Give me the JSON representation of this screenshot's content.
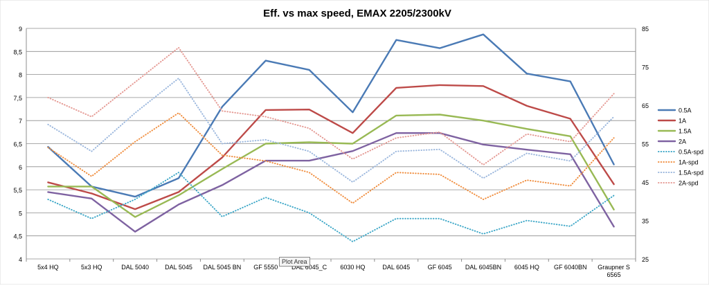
{
  "chart_data": {
    "type": "line",
    "title": "Eff. vs max speed, EMAX 2205/2300kV",
    "categories": [
      "5x4 HQ",
      "5x3 HQ",
      "DAL 5040",
      "DAL 5045",
      "DAL 5045 BN",
      "GF 5550",
      "DAL 6045_C",
      "6030 HQ",
      "DAL 6045",
      "GF 6045",
      "DAL 6045BN",
      "6045 HQ",
      "GF 6040BN",
      "Graupner S 6565"
    ],
    "y_left": {
      "min": 4,
      "max": 9,
      "ticks": [
        "4",
        "4,5",
        "5",
        "5,5",
        "6",
        "6,5",
        "7",
        "7,5",
        "8",
        "8,5",
        "9"
      ]
    },
    "y_right": {
      "min": 25,
      "max": 85,
      "ticks": [
        "25",
        "35",
        "45",
        "55",
        "65",
        "75",
        "85"
      ]
    },
    "grid": true,
    "legend_position": "right",
    "series": [
      {
        "name": "0.5A",
        "axis": "left",
        "style": "solid",
        "color": "#4a7ab5",
        "values": [
          6.43,
          5.57,
          5.35,
          5.75,
          7.3,
          8.3,
          8.1,
          7.18,
          8.75,
          8.57,
          8.87,
          8.02,
          7.85,
          6.05
        ]
      },
      {
        "name": "1A",
        "axis": "left",
        "style": "solid",
        "color": "#bd4a48",
        "values": [
          5.66,
          5.42,
          5.08,
          5.45,
          6.2,
          7.23,
          7.24,
          6.73,
          7.71,
          7.77,
          7.75,
          7.32,
          7.04,
          5.62
        ]
      },
      {
        "name": "1.5A",
        "axis": "left",
        "style": "solid",
        "color": "#98b954",
        "values": [
          5.57,
          5.57,
          4.91,
          5.38,
          5.95,
          6.5,
          6.53,
          6.5,
          7.11,
          7.13,
          7.0,
          6.82,
          6.66,
          5.07
        ]
      },
      {
        "name": "2A",
        "axis": "left",
        "style": "solid",
        "color": "#7e62a1",
        "values": [
          5.45,
          5.31,
          4.59,
          5.18,
          5.6,
          6.13,
          6.13,
          6.34,
          6.73,
          6.73,
          6.48,
          6.37,
          6.27,
          4.7
        ]
      },
      {
        "name": "0.5A-spd",
        "axis": "right",
        "style": "dotted",
        "color": "#3fa8c8",
        "values": [
          40.5,
          35.5,
          40.5,
          47.5,
          36,
          41,
          37,
          29.5,
          35.5,
          35.5,
          31.5,
          35,
          33.5,
          41.5
        ]
      },
      {
        "name": "1A-spd",
        "axis": "right",
        "style": "dotted",
        "color": "#f08e3f",
        "values": [
          54,
          46.5,
          55.5,
          63,
          52,
          50.5,
          47.5,
          39.5,
          47.5,
          47,
          40.5,
          45.5,
          44,
          56.5
        ]
      },
      {
        "name": "1.5A-spd",
        "axis": "right",
        "style": "dotted",
        "color": "#9bb7dd",
        "values": [
          60,
          53,
          63,
          72,
          55,
          56,
          53,
          45,
          53,
          53.5,
          46,
          52.5,
          50.5,
          62
        ]
      },
      {
        "name": "2A-spd",
        "axis": "right",
        "style": "dotted",
        "color": "#e59a94",
        "values": [
          67,
          62,
          71,
          80,
          63.5,
          62,
          59,
          51,
          56.5,
          58,
          49.5,
          57.5,
          55.5,
          68
        ]
      }
    ]
  },
  "ui": {
    "tooltip": "Plot Area"
  }
}
